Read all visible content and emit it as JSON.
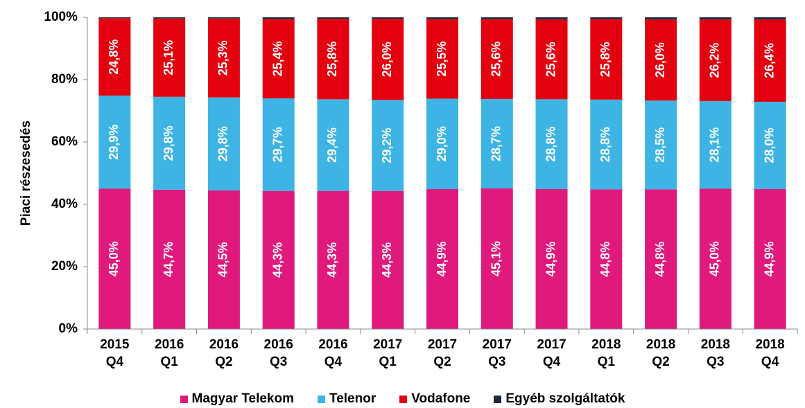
{
  "chart_data": {
    "type": "stacked_bar",
    "y_axis_label": "Piaci részesedés",
    "categories": [
      "2015 Q4",
      "2016 Q1",
      "2016 Q2",
      "2016 Q3",
      "2016 Q4",
      "2017 Q1",
      "2017 Q2",
      "2017 Q3",
      "2017 Q4",
      "2018 Q1",
      "2018 Q2",
      "2018 Q3",
      "2018 Q4"
    ],
    "series": [
      {
        "name": "Magyar Telekom",
        "color": "#e0197d",
        "values": [
          45.0,
          44.7,
          44.5,
          44.3,
          44.3,
          44.3,
          44.9,
          45.1,
          44.9,
          44.8,
          44.8,
          45.0,
          44.9
        ],
        "value_labels": [
          "45,0%",
          "44,7%",
          "44,5%",
          "44,3%",
          "44,3%",
          "44,3%",
          "44,9%",
          "45,1%",
          "44,9%",
          "44,8%",
          "44,8%",
          "45,0%",
          "44,9%"
        ]
      },
      {
        "name": "Telenor",
        "color": "#3db4e4",
        "values": [
          29.9,
          29.8,
          29.8,
          29.7,
          29.4,
          29.2,
          29.0,
          28.7,
          28.8,
          28.8,
          28.5,
          28.1,
          28.0
        ],
        "value_labels": [
          "29,9%",
          "29,8%",
          "29,8%",
          "29,7%",
          "29,4%",
          "29,2%",
          "29,0%",
          "28,7%",
          "28,8%",
          "28,8%",
          "28,5%",
          "28,1%",
          "28,0%"
        ]
      },
      {
        "name": "Vodafone",
        "color": "#e3000f",
        "values": [
          24.8,
          25.1,
          25.3,
          25.4,
          25.8,
          26.0,
          25.5,
          25.6,
          25.6,
          25.8,
          26.0,
          26.2,
          26.4
        ],
        "value_labels": [
          "24,8%",
          "25,1%",
          "25,3%",
          "25,4%",
          "25,8%",
          "26,0%",
          "25,5%",
          "25,6%",
          "25,6%",
          "25,8%",
          "26,0%",
          "26,2%",
          "26,4%"
        ]
      },
      {
        "name": "Egyéb szolgáltatók",
        "color": "#1e2a3a",
        "values": [
          0.3,
          0.4,
          0.4,
          0.6,
          0.5,
          0.5,
          0.6,
          0.6,
          0.7,
          0.6,
          0.7,
          0.7,
          0.7
        ]
      }
    ],
    "ylim": [
      0,
      100
    ],
    "yticks": [
      {
        "value": 0,
        "label": "0%"
      },
      {
        "value": 20,
        "label": "20%"
      },
      {
        "value": 40,
        "label": "40%"
      },
      {
        "value": 60,
        "label": "60%"
      },
      {
        "value": 80,
        "label": "80%"
      },
      {
        "value": 100,
        "label": "100%"
      }
    ],
    "legend": "bottom"
  }
}
